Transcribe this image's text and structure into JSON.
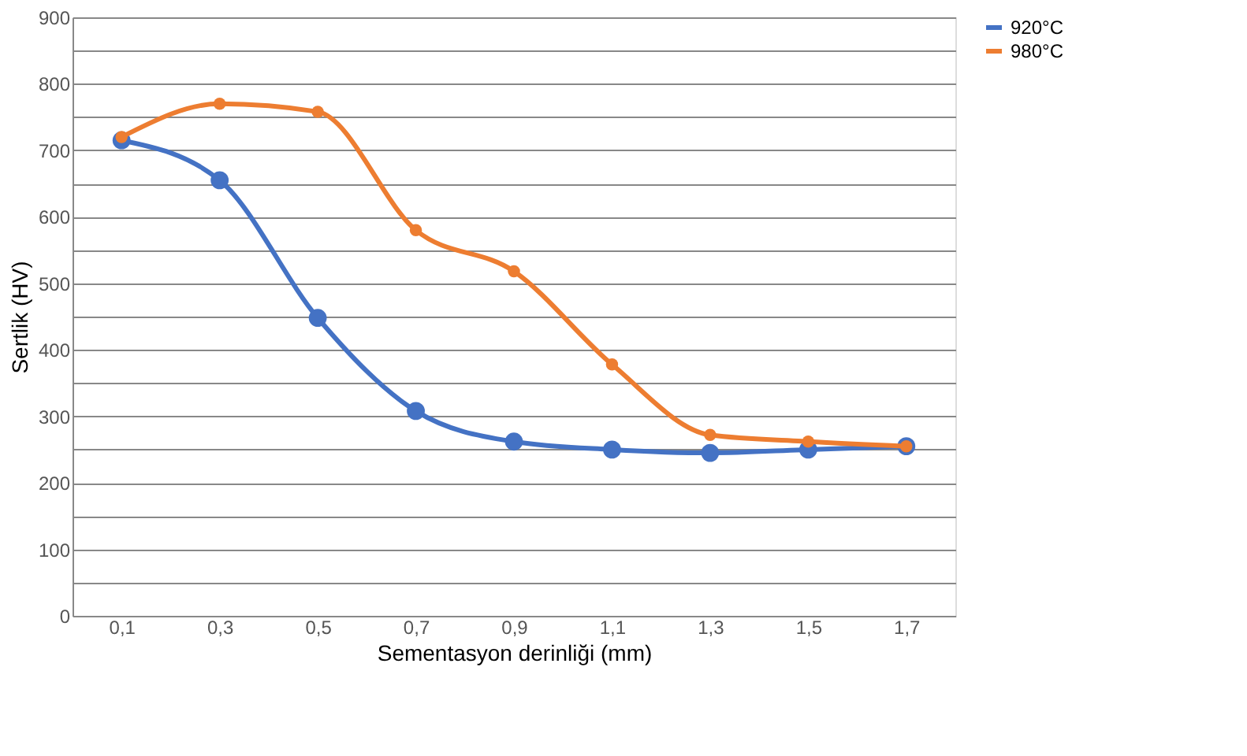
{
  "chart_data": {
    "type": "line",
    "xlabel": "Sementasyon derinliği (mm)",
    "ylabel": "Sertlik (HV)",
    "categories": [
      "0,1",
      "0,3",
      "0,5",
      "0,7",
      "0,9",
      "1,1",
      "1,3",
      "1,5",
      "1,7"
    ],
    "series": [
      {
        "name": "920°C",
        "color": "#4472c4",
        "values": [
          715,
          655,
          448,
          308,
          262,
          250,
          245,
          250,
          255
        ]
      },
      {
        "name": "980°C",
        "color": "#ed7d31",
        "values": [
          720,
          770,
          758,
          580,
          518,
          378,
          272,
          262,
          255
        ]
      }
    ],
    "ylim": [
      0,
      900
    ],
    "yticks": [
      0,
      {
        "value": 50,
        "label": null
      },
      100,
      {
        "value": 150,
        "label": null
      },
      200,
      {
        "value": 250,
        "label": null
      },
      300,
      {
        "value": 350,
        "label": null
      },
      400,
      {
        "value": 450,
        "label": null
      },
      500,
      {
        "value": 550,
        "label": null
      },
      600,
      {
        "value": 650,
        "label": null
      },
      700,
      {
        "value": 750,
        "label": null
      },
      800,
      {
        "value": 850,
        "label": null
      },
      900
    ],
    "grid": "y",
    "legend": "right",
    "marker": "circle",
    "line_style": "solid"
  }
}
